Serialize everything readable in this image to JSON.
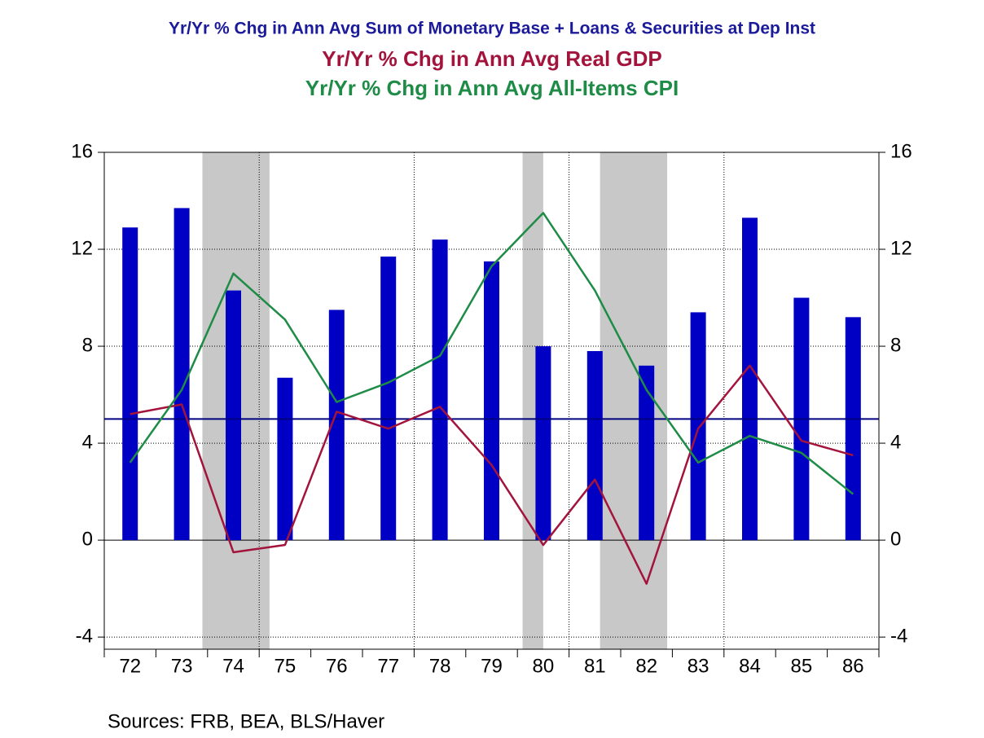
{
  "chart_data": {
    "type": "bar_line",
    "source": "Sources:  FRB, BEA, BLS/Haver",
    "categories": [
      "72",
      "73",
      "74",
      "75",
      "76",
      "77",
      "78",
      "79",
      "80",
      "81",
      "82",
      "83",
      "84",
      "85",
      "86"
    ],
    "series": [
      {
        "name": "Yr/Yr % Chg in Ann Avg  Sum of Monetary Base + Loans & Securities at Dep Inst",
        "type": "bar",
        "color": "#0000c4",
        "values": [
          12.9,
          13.7,
          10.3,
          6.7,
          9.5,
          11.7,
          12.4,
          11.5,
          8.0,
          7.8,
          7.2,
          9.4,
          13.3,
          10.0,
          9.2
        ]
      },
      {
        "name": "Yr/Yr % Chg in Ann Avg  Real GDP",
        "type": "line",
        "color": "#a3143c",
        "values": [
          5.2,
          5.6,
          -0.5,
          -0.2,
          5.3,
          4.6,
          5.5,
          3.1,
          -0.2,
          2.5,
          -1.8,
          4.6,
          7.2,
          4.1,
          3.5
        ]
      },
      {
        "name": "Yr/Yr % Chg in Ann Avg All-Items CPI",
        "type": "line",
        "color": "#1e8c46",
        "values": [
          3.2,
          6.2,
          11.0,
          9.1,
          5.7,
          6.5,
          7.6,
          11.3,
          13.5,
          10.3,
          6.2,
          3.2,
          4.3,
          3.6,
          1.9
        ]
      }
    ],
    "reference_line": 5,
    "reference_color": "#000080",
    "shaded_periods": [
      [
        73.9,
        75.2
      ],
      [
        80.1,
        80.5
      ],
      [
        81.6,
        82.9
      ]
    ],
    "ylim": [
      -4.5,
      16
    ],
    "yticks": [
      -4,
      0,
      4,
      8,
      12,
      16
    ],
    "y2lim": [
      -4.5,
      16
    ],
    "y2ticks": [
      -4,
      0,
      4,
      8,
      12,
      16
    ],
    "grid": true
  }
}
